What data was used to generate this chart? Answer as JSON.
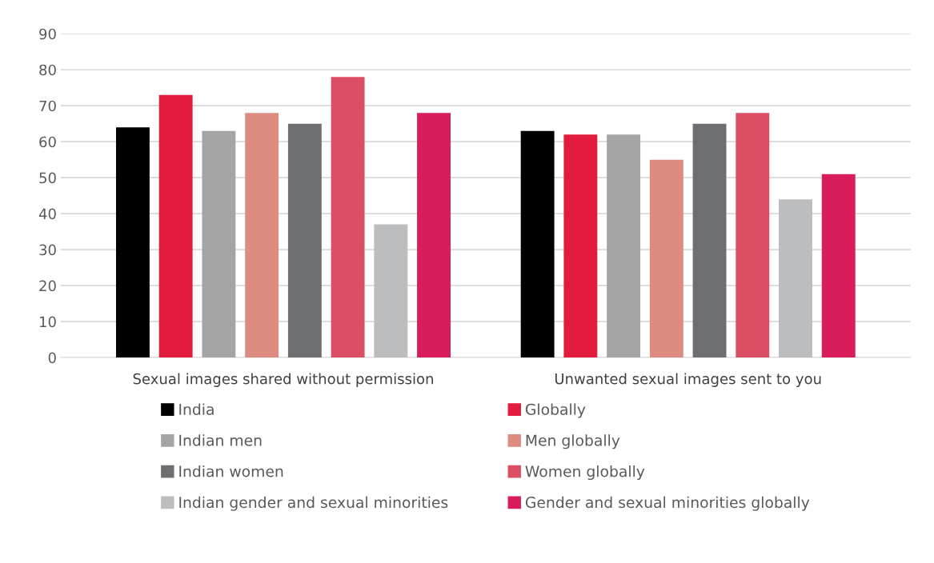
{
  "chart_data": {
    "type": "bar",
    "categories": [
      "Sexual images shared without permission",
      "Unwanted sexual images sent to you"
    ],
    "series": [
      {
        "name": "India",
        "color": "#000000",
        "values": [
          64,
          63
        ]
      },
      {
        "name": "Globally",
        "color": "#e31c3d",
        "values": [
          73,
          62
        ]
      },
      {
        "name": "Indian men",
        "color": "#a5a5a5",
        "values": [
          63,
          62
        ]
      },
      {
        "name": "Men globally",
        "color": "#de8c82",
        "values": [
          68,
          55
        ]
      },
      {
        "name": "Indian women",
        "color": "#6d6e71",
        "values": [
          65,
          65
        ]
      },
      {
        "name": "Women globally",
        "color": "#dc4e63",
        "values": [
          78,
          68
        ]
      },
      {
        "name": "Indian gender and sexual minorities",
        "color": "#bcbdbf",
        "values": [
          37,
          44
        ]
      },
      {
        "name": "Gender and sexual minorities globally",
        "color": "#d81c5c",
        "values": [
          68,
          51
        ]
      }
    ],
    "ylim": [
      0,
      90
    ],
    "yticks": [
      0,
      10,
      20,
      30,
      40,
      50,
      60,
      70,
      80,
      90
    ],
    "grid": "y",
    "legend": "bottom"
  }
}
